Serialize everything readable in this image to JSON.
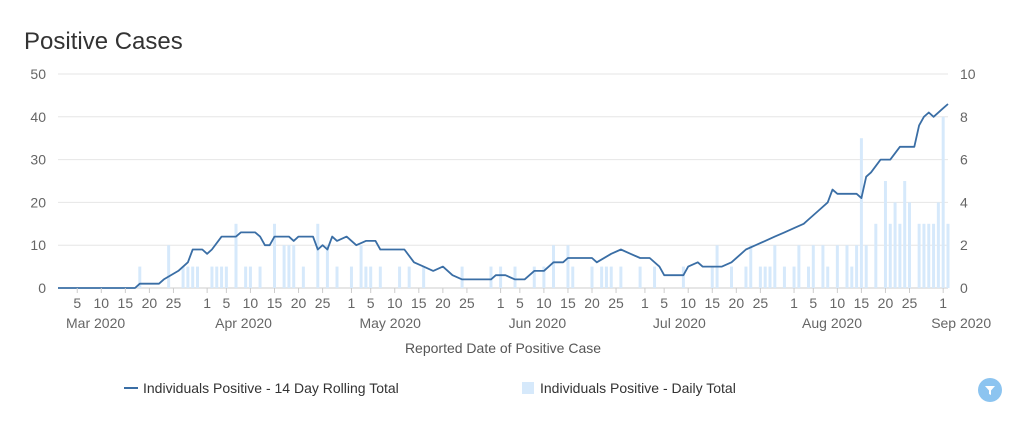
{
  "title": "Positive Cases",
  "filter_icon": "filter-icon",
  "chart_data": {
    "type": "bar+line",
    "title": "Positive Cases",
    "xlabel": "Reported Date of Positive Case",
    "ylabel_left": "",
    "ylabel_right": "",
    "x_start": "2020-03-01",
    "x_end": "2020-09-02",
    "ylim_left": [
      0,
      50
    ],
    "ylim_right": [
      0,
      10
    ],
    "yticks_left": [
      0,
      10,
      20,
      30,
      40,
      50
    ],
    "yticks_right": [
      0,
      2,
      4,
      6,
      8,
      10
    ],
    "grid": true,
    "legend_position": "bottom",
    "day_ticks": [
      {
        "date": "2020-03-05",
        "label": "5"
      },
      {
        "date": "2020-03-10",
        "label": "10"
      },
      {
        "date": "2020-03-15",
        "label": "15"
      },
      {
        "date": "2020-03-20",
        "label": "20"
      },
      {
        "date": "2020-03-25",
        "label": "25"
      },
      {
        "date": "2020-04-01",
        "label": "1"
      },
      {
        "date": "2020-04-05",
        "label": "5"
      },
      {
        "date": "2020-04-10",
        "label": "10"
      },
      {
        "date": "2020-04-15",
        "label": "15"
      },
      {
        "date": "2020-04-20",
        "label": "20"
      },
      {
        "date": "2020-04-25",
        "label": "25"
      },
      {
        "date": "2020-05-01",
        "label": "1"
      },
      {
        "date": "2020-05-05",
        "label": "5"
      },
      {
        "date": "2020-05-10",
        "label": "10"
      },
      {
        "date": "2020-05-15",
        "label": "15"
      },
      {
        "date": "2020-05-20",
        "label": "20"
      },
      {
        "date": "2020-05-25",
        "label": "25"
      },
      {
        "date": "2020-06-01",
        "label": "1"
      },
      {
        "date": "2020-06-05",
        "label": "5"
      },
      {
        "date": "2020-06-10",
        "label": "10"
      },
      {
        "date": "2020-06-15",
        "label": "15"
      },
      {
        "date": "2020-06-20",
        "label": "20"
      },
      {
        "date": "2020-06-25",
        "label": "25"
      },
      {
        "date": "2020-07-01",
        "label": "1"
      },
      {
        "date": "2020-07-05",
        "label": "5"
      },
      {
        "date": "2020-07-10",
        "label": "10"
      },
      {
        "date": "2020-07-15",
        "label": "15"
      },
      {
        "date": "2020-07-20",
        "label": "20"
      },
      {
        "date": "2020-07-25",
        "label": "25"
      },
      {
        "date": "2020-08-01",
        "label": "1"
      },
      {
        "date": "2020-08-05",
        "label": "5"
      },
      {
        "date": "2020-08-10",
        "label": "10"
      },
      {
        "date": "2020-08-15",
        "label": "15"
      },
      {
        "date": "2020-08-20",
        "label": "20"
      },
      {
        "date": "2020-08-25",
        "label": "25"
      },
      {
        "date": "2020-09-01",
        "label": "1"
      }
    ],
    "month_ticks": [
      {
        "date": "2020-03-01",
        "label": "Mar 2020"
      },
      {
        "date": "2020-04-01",
        "label": "Apr 2020"
      },
      {
        "date": "2020-05-01",
        "label": "May 2020"
      },
      {
        "date": "2020-06-01",
        "label": "Jun 2020"
      },
      {
        "date": "2020-07-01",
        "label": "Jul 2020"
      },
      {
        "date": "2020-08-01",
        "label": "Aug 2020"
      },
      {
        "date": "2020-09-01",
        "label": "Sep 2020"
      }
    ],
    "series": [
      {
        "name": "Individuals Positive - 14 Day Rolling Total",
        "type": "line",
        "axis": "left",
        "color": "#3a6ea5",
        "points": [
          [
            "2020-03-01",
            0
          ],
          [
            "2020-03-17",
            0
          ],
          [
            "2020-03-18",
            1
          ],
          [
            "2020-03-22",
            1
          ],
          [
            "2020-03-23",
            2
          ],
          [
            "2020-03-26",
            4
          ],
          [
            "2020-03-28",
            6
          ],
          [
            "2020-03-29",
            9
          ],
          [
            "2020-03-31",
            9
          ],
          [
            "2020-04-01",
            8
          ],
          [
            "2020-04-02",
            9
          ],
          [
            "2020-04-04",
            12
          ],
          [
            "2020-04-07",
            12
          ],
          [
            "2020-04-08",
            13
          ],
          [
            "2020-04-11",
            13
          ],
          [
            "2020-04-12",
            12
          ],
          [
            "2020-04-13",
            10
          ],
          [
            "2020-04-14",
            10
          ],
          [
            "2020-04-15",
            12
          ],
          [
            "2020-04-18",
            12
          ],
          [
            "2020-04-19",
            11
          ],
          [
            "2020-04-20",
            12
          ],
          [
            "2020-04-23",
            12
          ],
          [
            "2020-04-24",
            9
          ],
          [
            "2020-04-25",
            10
          ],
          [
            "2020-04-26",
            9
          ],
          [
            "2020-04-27",
            12
          ],
          [
            "2020-04-28",
            11
          ],
          [
            "2020-04-30",
            12
          ],
          [
            "2020-05-02",
            10
          ],
          [
            "2020-05-04",
            11
          ],
          [
            "2020-05-06",
            11
          ],
          [
            "2020-05-07",
            9
          ],
          [
            "2020-05-12",
            9
          ],
          [
            "2020-05-14",
            6
          ],
          [
            "2020-05-16",
            5
          ],
          [
            "2020-05-18",
            4
          ],
          [
            "2020-05-20",
            5
          ],
          [
            "2020-05-22",
            3
          ],
          [
            "2020-05-24",
            2
          ],
          [
            "2020-05-30",
            2
          ],
          [
            "2020-05-31",
            3
          ],
          [
            "2020-06-02",
            3
          ],
          [
            "2020-06-04",
            2
          ],
          [
            "2020-06-06",
            2
          ],
          [
            "2020-06-08",
            4
          ],
          [
            "2020-06-10",
            4
          ],
          [
            "2020-06-12",
            6
          ],
          [
            "2020-06-14",
            6
          ],
          [
            "2020-06-15",
            7
          ],
          [
            "2020-06-20",
            7
          ],
          [
            "2020-06-21",
            6
          ],
          [
            "2020-06-24",
            8
          ],
          [
            "2020-06-26",
            9
          ],
          [
            "2020-06-28",
            8
          ],
          [
            "2020-06-30",
            7
          ],
          [
            "2020-07-02",
            7
          ],
          [
            "2020-07-04",
            5
          ],
          [
            "2020-07-05",
            3
          ],
          [
            "2020-07-09",
            3
          ],
          [
            "2020-07-10",
            5
          ],
          [
            "2020-07-12",
            6
          ],
          [
            "2020-07-13",
            5
          ],
          [
            "2020-07-15",
            5
          ],
          [
            "2020-07-17",
            5
          ],
          [
            "2020-07-19",
            6
          ],
          [
            "2020-07-21",
            8
          ],
          [
            "2020-07-22",
            9
          ],
          [
            "2020-07-24",
            10
          ],
          [
            "2020-07-26",
            11
          ],
          [
            "2020-07-28",
            12
          ],
          [
            "2020-07-30",
            13
          ],
          [
            "2020-08-01",
            14
          ],
          [
            "2020-08-03",
            15
          ],
          [
            "2020-08-04",
            16
          ],
          [
            "2020-08-06",
            18
          ],
          [
            "2020-08-08",
            20
          ],
          [
            "2020-08-09",
            23
          ],
          [
            "2020-08-10",
            22
          ],
          [
            "2020-08-14",
            22
          ],
          [
            "2020-08-15",
            21
          ],
          [
            "2020-08-16",
            26
          ],
          [
            "2020-08-17",
            27
          ],
          [
            "2020-08-19",
            30
          ],
          [
            "2020-08-21",
            30
          ],
          [
            "2020-08-23",
            33
          ],
          [
            "2020-08-26",
            33
          ],
          [
            "2020-08-27",
            38
          ],
          [
            "2020-08-28",
            40
          ],
          [
            "2020-08-29",
            41
          ],
          [
            "2020-08-30",
            40
          ],
          [
            "2020-09-01",
            42
          ],
          [
            "2020-09-02",
            43
          ]
        ]
      },
      {
        "name": "Individuals Positive - Daily Total",
        "type": "bar",
        "axis": "right",
        "color": "#d6e9fb",
        "points": [
          [
            "2020-03-18",
            1
          ],
          [
            "2020-03-24",
            2
          ],
          [
            "2020-03-27",
            1
          ],
          [
            "2020-03-28",
            1
          ],
          [
            "2020-03-29",
            1
          ],
          [
            "2020-03-30",
            1
          ],
          [
            "2020-04-02",
            1
          ],
          [
            "2020-04-03",
            1
          ],
          [
            "2020-04-04",
            1
          ],
          [
            "2020-04-05",
            1
          ],
          [
            "2020-04-07",
            3
          ],
          [
            "2020-04-09",
            1
          ],
          [
            "2020-04-10",
            1
          ],
          [
            "2020-04-12",
            1
          ],
          [
            "2020-04-15",
            3
          ],
          [
            "2020-04-17",
            2
          ],
          [
            "2020-04-18",
            2
          ],
          [
            "2020-04-19",
            2
          ],
          [
            "2020-04-21",
            1
          ],
          [
            "2020-04-24",
            3
          ],
          [
            "2020-04-26",
            2
          ],
          [
            "2020-04-28",
            1
          ],
          [
            "2020-05-01",
            1
          ],
          [
            "2020-05-03",
            2
          ],
          [
            "2020-05-04",
            1
          ],
          [
            "2020-05-05",
            1
          ],
          [
            "2020-05-07",
            1
          ],
          [
            "2020-05-11",
            1
          ],
          [
            "2020-05-13",
            1
          ],
          [
            "2020-05-16",
            1
          ],
          [
            "2020-05-24",
            1
          ],
          [
            "2020-05-30",
            1
          ],
          [
            "2020-06-01",
            1
          ],
          [
            "2020-06-04",
            1
          ],
          [
            "2020-06-08",
            1
          ],
          [
            "2020-06-10",
            1
          ],
          [
            "2020-06-12",
            2
          ],
          [
            "2020-06-15",
            2
          ],
          [
            "2020-06-16",
            1
          ],
          [
            "2020-06-20",
            1
          ],
          [
            "2020-06-22",
            1
          ],
          [
            "2020-06-23",
            1
          ],
          [
            "2020-06-24",
            1
          ],
          [
            "2020-06-26",
            1
          ],
          [
            "2020-06-30",
            1
          ],
          [
            "2020-07-03",
            1
          ],
          [
            "2020-07-09",
            1
          ],
          [
            "2020-07-15",
            1
          ],
          [
            "2020-07-16",
            2
          ],
          [
            "2020-07-19",
            1
          ],
          [
            "2020-07-22",
            1
          ],
          [
            "2020-07-23",
            2
          ],
          [
            "2020-07-25",
            1
          ],
          [
            "2020-07-26",
            1
          ],
          [
            "2020-07-27",
            1
          ],
          [
            "2020-07-28",
            2
          ],
          [
            "2020-07-30",
            1
          ],
          [
            "2020-08-01",
            1
          ],
          [
            "2020-08-02",
            2
          ],
          [
            "2020-08-04",
            1
          ],
          [
            "2020-08-05",
            2
          ],
          [
            "2020-08-07",
            2
          ],
          [
            "2020-08-08",
            1
          ],
          [
            "2020-08-10",
            2
          ],
          [
            "2020-08-12",
            2
          ],
          [
            "2020-08-13",
            1
          ],
          [
            "2020-08-14",
            2
          ],
          [
            "2020-08-15",
            7
          ],
          [
            "2020-08-16",
            2
          ],
          [
            "2020-08-18",
            3
          ],
          [
            "2020-08-20",
            5
          ],
          [
            "2020-08-21",
            3
          ],
          [
            "2020-08-22",
            4
          ],
          [
            "2020-08-23",
            3
          ],
          [
            "2020-08-24",
            5
          ],
          [
            "2020-08-25",
            4
          ],
          [
            "2020-08-27",
            3
          ],
          [
            "2020-08-28",
            3
          ],
          [
            "2020-08-29",
            3
          ],
          [
            "2020-08-30",
            3
          ],
          [
            "2020-08-31",
            4
          ],
          [
            "2020-09-01",
            8
          ],
          [
            "2020-09-02",
            3
          ]
        ]
      }
    ]
  }
}
